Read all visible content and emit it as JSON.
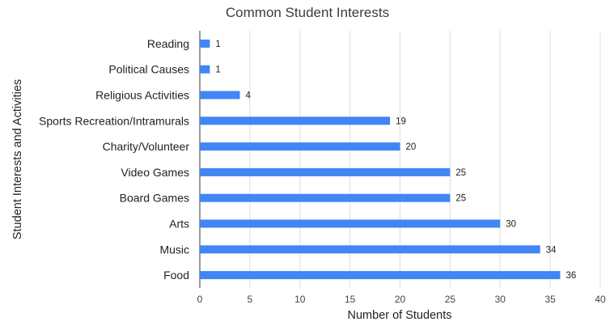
{
  "chart_data": {
    "type": "bar",
    "orientation": "horizontal",
    "title": "Common Student Interests",
    "xlabel": "Number of Students",
    "ylabel": "Student Interests and Activities",
    "categories": [
      "Reading",
      "Political Causes",
      "Religious Activities",
      "Sports Recreation/Intramurals",
      "Charity/Volunteer",
      "Video Games",
      "Board Games",
      "Arts",
      "Music",
      "Food"
    ],
    "values": [
      1,
      1,
      4,
      19,
      20,
      25,
      25,
      30,
      34,
      36
    ],
    "xlim": [
      0,
      40
    ],
    "xticks": [
      0,
      5,
      10,
      15,
      20,
      25,
      30,
      35,
      40
    ],
    "grid": true,
    "legend": "none",
    "bar_color": "#4285f4"
  }
}
